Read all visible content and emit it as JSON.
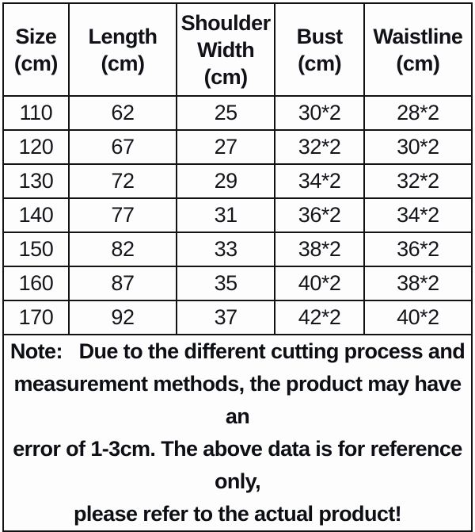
{
  "colors": {
    "border": "#121212",
    "text": "#14161c",
    "background": "#fdfdfd"
  },
  "table": {
    "columns": [
      {
        "label": "Size (cm)",
        "lines": [
          "Size",
          "(cm)"
        ]
      },
      {
        "label": "Length (cm)",
        "lines": [
          "Length",
          "(cm)"
        ]
      },
      {
        "label": "Shoulder Width (cm)",
        "lines": [
          "Shoulder",
          "Width",
          "(cm)"
        ]
      },
      {
        "label": "Bust (cm)",
        "lines": [
          "Bust",
          "(cm)"
        ]
      },
      {
        "label": "Waistline (cm)",
        "lines": [
          "Waistline",
          "(cm)"
        ]
      }
    ],
    "rows": [
      [
        "110",
        "62",
        "25",
        "30*2",
        "28*2"
      ],
      [
        "120",
        "67",
        "27",
        "32*2",
        "30*2"
      ],
      [
        "130",
        "72",
        "29",
        "34*2",
        "32*2"
      ],
      [
        "140",
        "77",
        "31",
        "36*2",
        "34*2"
      ],
      [
        "150",
        "82",
        "33",
        "38*2",
        "36*2"
      ],
      [
        "160",
        "87",
        "35",
        "40*2",
        "38*2"
      ],
      [
        "170",
        "92",
        "37",
        "42*2",
        "40*2"
      ]
    ]
  },
  "note": {
    "lines": [
      "Note:   Due to the different cutting process and",
      "measurement methods, the product may have an",
      "error of 1-3cm. The above data is for reference only,",
      "please refer to the actual product!"
    ]
  },
  "chart_data": {
    "type": "table",
    "title": "Garment size chart",
    "columns": [
      "Size (cm)",
      "Length (cm)",
      "Shoulder Width (cm)",
      "Bust (cm)",
      "Waistline (cm)"
    ],
    "rows": [
      [
        "110",
        "62",
        "25",
        "30*2",
        "28*2"
      ],
      [
        "120",
        "67",
        "27",
        "32*2",
        "30*2"
      ],
      [
        "130",
        "72",
        "29",
        "34*2",
        "32*2"
      ],
      [
        "140",
        "77",
        "31",
        "36*2",
        "34*2"
      ],
      [
        "150",
        "82",
        "33",
        "38*2",
        "36*2"
      ],
      [
        "160",
        "87",
        "35",
        "40*2",
        "38*2"
      ],
      [
        "170",
        "92",
        "37",
        "42*2",
        "40*2"
      ]
    ],
    "note": "Note: Due to the different cutting process and measurement methods, the product may have an error of 1-3cm. The above data is for reference only, please refer to the actual product!"
  }
}
